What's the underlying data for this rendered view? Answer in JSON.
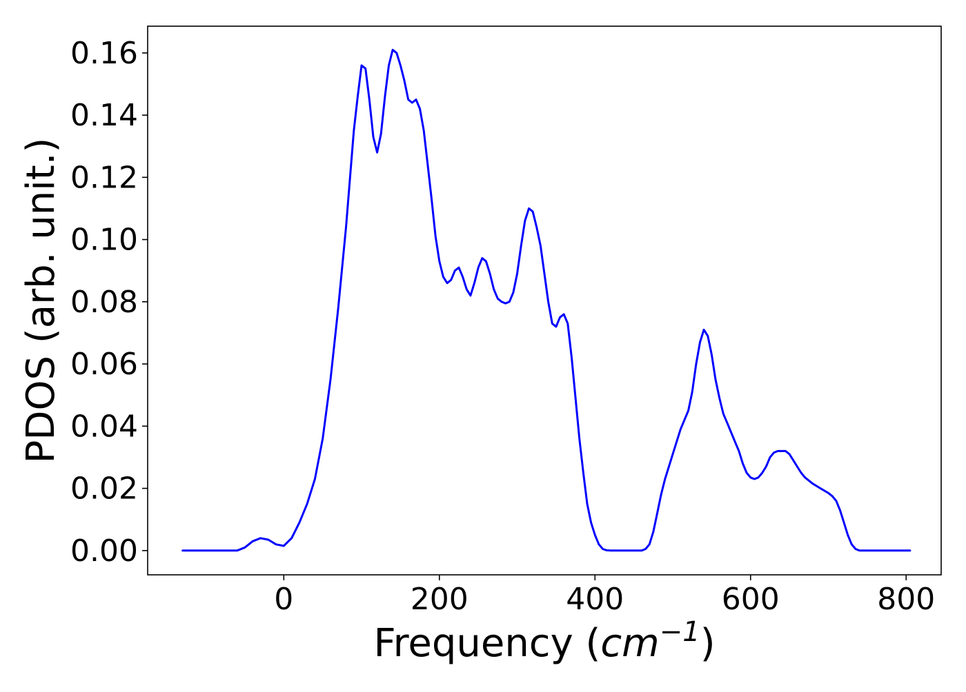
{
  "chart_data": {
    "type": "line",
    "title": "",
    "xlabel": {
      "prefix": "Frequency (",
      "unit": "cm",
      "exponent": "−1",
      "suffix": ")"
    },
    "ylabel": "PDOS (arb. unit.)",
    "xlim": [
      -175,
      845
    ],
    "ylim": [
      -0.0078,
      0.1686
    ],
    "xticks": [
      {
        "value": 0,
        "label": "0"
      },
      {
        "value": 200,
        "label": "200"
      },
      {
        "value": 400,
        "label": "400"
      },
      {
        "value": 600,
        "label": "600"
      },
      {
        "value": 800,
        "label": "800"
      }
    ],
    "yticks": [
      {
        "value": 0.0,
        "label": "0.00"
      },
      {
        "value": 0.02,
        "label": "0.02"
      },
      {
        "value": 0.04,
        "label": "0.04"
      },
      {
        "value": 0.06,
        "label": "0.06"
      },
      {
        "value": 0.08,
        "label": "0.08"
      },
      {
        "value": 0.1,
        "label": "0.10"
      },
      {
        "value": 0.12,
        "label": "0.12"
      },
      {
        "value": 0.14,
        "label": "0.14"
      },
      {
        "value": 0.16,
        "label": "0.16"
      }
    ],
    "grid": false,
    "legend": "none",
    "series": [
      {
        "color": "#0000ff",
        "x": [
          -130,
          -60,
          -50,
          -40,
          -30,
          -20,
          -10,
          0,
          10,
          20,
          30,
          40,
          50,
          60,
          70,
          80,
          90,
          95,
          100,
          105,
          110,
          115,
          120,
          125,
          130,
          135,
          140,
          145,
          150,
          155,
          160,
          165,
          170,
          175,
          180,
          185,
          190,
          195,
          200,
          205,
          210,
          215,
          220,
          225,
          230,
          235,
          240,
          245,
          250,
          255,
          260,
          265,
          270,
          275,
          280,
          285,
          290,
          295,
          300,
          305,
          310,
          315,
          320,
          325,
          330,
          335,
          340,
          345,
          350,
          355,
          360,
          365,
          370,
          375,
          380,
          385,
          390,
          395,
          400,
          405,
          410,
          415,
          420,
          460,
          465,
          470,
          475,
          480,
          485,
          490,
          500,
          510,
          520,
          525,
          530,
          535,
          540,
          545,
          550,
          555,
          560,
          565,
          570,
          575,
          580,
          585,
          590,
          595,
          600,
          605,
          610,
          615,
          620,
          625,
          630,
          635,
          640,
          645,
          650,
          655,
          660,
          665,
          670,
          680,
          690,
          700,
          705,
          710,
          715,
          720,
          725,
          730,
          735,
          740,
          745,
          750,
          805
        ],
        "y": [
          0.0,
          0.0,
          0.001,
          0.003,
          0.004,
          0.0035,
          0.002,
          0.0015,
          0.004,
          0.009,
          0.015,
          0.023,
          0.036,
          0.055,
          0.078,
          0.104,
          0.135,
          0.146,
          0.156,
          0.155,
          0.145,
          0.133,
          0.128,
          0.134,
          0.146,
          0.156,
          0.161,
          0.16,
          0.156,
          0.151,
          0.145,
          0.144,
          0.145,
          0.142,
          0.135,
          0.124,
          0.113,
          0.101,
          0.093,
          0.088,
          0.086,
          0.087,
          0.09,
          0.091,
          0.088,
          0.084,
          0.082,
          0.086,
          0.091,
          0.094,
          0.093,
          0.089,
          0.084,
          0.081,
          0.08,
          0.0795,
          0.08,
          0.083,
          0.089,
          0.098,
          0.106,
          0.11,
          0.109,
          0.104,
          0.098,
          0.089,
          0.08,
          0.073,
          0.072,
          0.075,
          0.076,
          0.073,
          0.062,
          0.049,
          0.036,
          0.025,
          0.015,
          0.009,
          0.005,
          0.002,
          0.0005,
          0.0001,
          0.0,
          0.0,
          0.0005,
          0.002,
          0.006,
          0.012,
          0.018,
          0.023,
          0.031,
          0.039,
          0.045,
          0.051,
          0.06,
          0.067,
          0.071,
          0.069,
          0.063,
          0.055,
          0.049,
          0.044,
          0.041,
          0.038,
          0.035,
          0.032,
          0.028,
          0.025,
          0.0235,
          0.023,
          0.0235,
          0.025,
          0.027,
          0.03,
          0.0315,
          0.032,
          0.032,
          0.032,
          0.031,
          0.029,
          0.027,
          0.025,
          0.0235,
          0.0215,
          0.02,
          0.0185,
          0.0175,
          0.016,
          0.013,
          0.009,
          0.005,
          0.002,
          0.0005,
          0.0,
          0.0,
          0.0,
          0.0
        ]
      }
    ]
  }
}
